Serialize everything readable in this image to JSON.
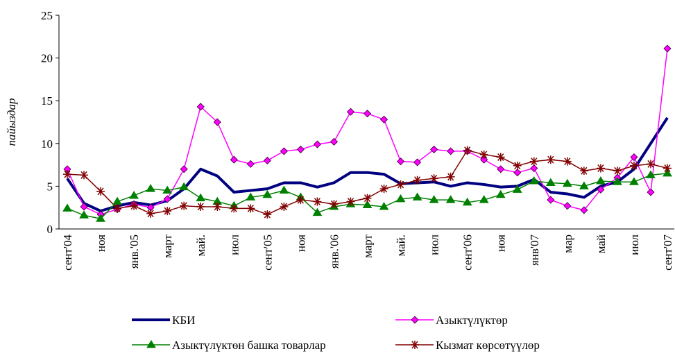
{
  "chart_data": {
    "type": "line",
    "ylabel": "пайыздар",
    "categories": [
      "сент'04",
      null,
      "ноя",
      null,
      "янв.'05",
      null,
      "март",
      null,
      "май.",
      null,
      "июл",
      null,
      "сент'05",
      null,
      "ноя",
      null,
      "янв.'06",
      null,
      "март",
      null,
      "май.",
      null,
      "июл",
      null,
      "сент'06",
      null,
      "ноя",
      null,
      "янв'07",
      null,
      "мар",
      null,
      "май",
      null,
      "июл",
      null,
      "сент'07"
    ],
    "ylim": [
      0,
      25
    ],
    "yticks": [
      0,
      5,
      10,
      15,
      20,
      25
    ],
    "grid": false,
    "series": [
      {
        "name": "КБИ",
        "color": "#000080",
        "marker": "none",
        "values": [
          5.9,
          3.0,
          2.1,
          2.7,
          3.1,
          2.8,
          3.3,
          4.7,
          7.0,
          6.2,
          4.3,
          4.5,
          4.7,
          5.4,
          5.4,
          4.9,
          5.4,
          6.6,
          6.6,
          6.4,
          5.3,
          5.4,
          5.5,
          5.0,
          5.4,
          5.2,
          4.9,
          5.0,
          5.8,
          4.3,
          4.1,
          3.7,
          5.0,
          5.5,
          7.0,
          10.0,
          13.0
        ]
      },
      {
        "name": "Азыктүлүктөр",
        "color": "#ff00ff",
        "marker": "diamond",
        "values": [
          7.0,
          2.6,
          1.7,
          2.3,
          2.9,
          2.5,
          3.5,
          7.0,
          14.3,
          12.5,
          8.1,
          7.6,
          8.0,
          9.1,
          9.3,
          9.9,
          10.2,
          13.7,
          13.5,
          12.8,
          7.9,
          7.8,
          9.3,
          9.1,
          9.1,
          8.1,
          7.0,
          6.6,
          7.1,
          3.4,
          2.7,
          2.2,
          4.6,
          6.0,
          8.4,
          4.3,
          21.1
        ]
      },
      {
        "name": "Азыктүлүктөн башка товарлар",
        "color": "#008000",
        "marker": "triangle",
        "values": [
          2.4,
          1.6,
          1.2,
          3.2,
          3.9,
          4.7,
          4.5,
          4.9,
          3.6,
          3.2,
          2.7,
          3.7,
          4.0,
          4.5,
          3.7,
          1.9,
          2.6,
          2.9,
          2.8,
          2.6,
          3.5,
          3.7,
          3.4,
          3.4,
          3.1,
          3.4,
          4.0,
          4.6,
          5.6,
          5.4,
          5.3,
          5.0,
          5.6,
          5.5,
          5.5,
          6.3,
          6.5
        ]
      },
      {
        "name": "Кызмат көрсөтүүлөр",
        "color": "#800000",
        "marker": "asterisk",
        "values": [
          6.4,
          6.3,
          4.4,
          2.4,
          2.7,
          1.8,
          2.1,
          2.7,
          2.6,
          2.6,
          2.4,
          2.4,
          1.7,
          2.6,
          3.4,
          3.2,
          2.9,
          3.2,
          3.6,
          4.7,
          5.2,
          5.7,
          5.9,
          6.1,
          9.2,
          8.7,
          8.4,
          7.4,
          7.9,
          8.1,
          7.9,
          6.8,
          7.1,
          6.8,
          7.4,
          7.6,
          7.1
        ]
      }
    ]
  }
}
